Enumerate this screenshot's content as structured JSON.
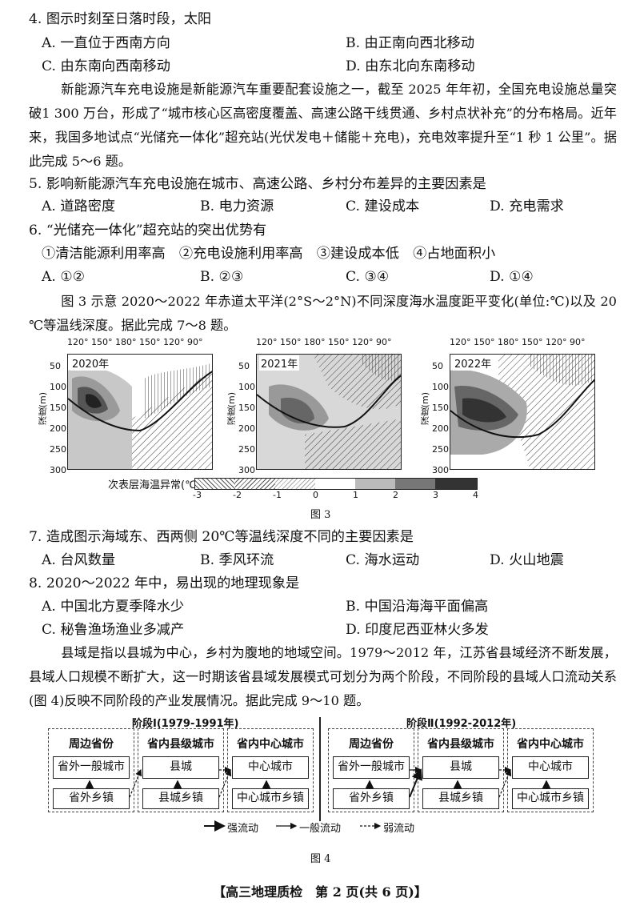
{
  "q4": {
    "stem": "4. 图示时刻至日落时段，太阳",
    "options": [
      "A. 一直位于西南方向",
      "B. 由正南向西北移动",
      "C. 由东南向西南移动",
      "D. 由东北向东南移动"
    ]
  },
  "passage1": "新能源汽车充电设施是新能源汽车重要配套设施之一，截至 2025 年年初，全国充电设施总量突破1 300 万台，形成了“城市核心区高密度覆盖、高速公路干线贯通、乡村点状补充”的分布格局。近年来，我国多地试点“光储充一体化”超充站(光伏发电＋储能＋充电)，充电效率提升至“1 秒 1 公里”。据此完成 5～6 题。",
  "q5": {
    "stem": "5. 影响新能源汽车充电设施在城市、高速公路、乡村分布差异的主要因素是",
    "options": [
      "A. 道路密度",
      "B. 电力资源",
      "C. 建设成本",
      "D. 充电需求"
    ]
  },
  "q6": {
    "stem": "6. “光储充一体化”超充站的突出优势有",
    "items": "①清洁能源利用率高　②充电设施利用率高　③建设成本低　④占地面积小",
    "options": [
      "A. ①②",
      "B. ②③",
      "C. ③④",
      "D. ①④"
    ]
  },
  "passage2": "图 3 示意 2020～2022 年赤道太平洋(2°S～2°N)不同深度海水温度距平变化(单位:℃)以及 20 ℃等温线深度。据此完成 7～8 题。",
  "figure3": {
    "panels": [
      "2020年",
      "2021年",
      "2022年"
    ],
    "x_ticks": [
      "120°",
      "150°",
      "180°",
      "150°",
      "120°",
      "90°"
    ],
    "y_ticks": [
      "50",
      "100",
      "150",
      "200",
      "250",
      "300"
    ],
    "ylabel": "深度(m)",
    "colorbar_label": "次表层海温异常(℃)",
    "colorbar_ticks": [
      "-3",
      "-2",
      "-1",
      "0",
      "1",
      "2",
      "3",
      "4"
    ],
    "caption": "图 3"
  },
  "q7": {
    "stem": "7. 造成图示海域东、西两侧 20℃等温线深度不同的主要因素是",
    "options": [
      "A. 台风数量",
      "B. 季风环流",
      "C. 海水运动",
      "D. 火山地震"
    ]
  },
  "q8": {
    "stem": "8. 2020～2022 年中，易出现的地理现象是",
    "options": [
      "A. 中国北方夏季降水少",
      "B. 中国沿海海平面偏高",
      "C. 秘鲁渔场渔业多减产",
      "D. 印度尼西亚林火多发"
    ]
  },
  "passage3": "县域是指以县城为中心，乡村为腹地的地域空间。1979～2012 年，江苏省县域经济不断发展，县域人口规模不断扩大，这一时期该省县域发展模式可划分为两个阶段，不同阶段的县域人口流动关系(图 4)反映不同阶段的产业发展情况。据此完成 9～10 题。",
  "figure4": {
    "phase1": "阶段Ⅰ(1979-1991年)",
    "phase2": "阶段Ⅱ(1992-2012年)",
    "headers": [
      "周边省份",
      "省内县级城市",
      "省内中心城市"
    ],
    "top_boxes": [
      "省外一般城市",
      "县城",
      "中心城市"
    ],
    "bottom_boxes": [
      "省外乡镇",
      "县城乡镇",
      "中心城市乡镇"
    ],
    "legend": [
      "强流动",
      "一般流动",
      "弱流动"
    ],
    "caption": "图 4"
  },
  "footer": "【高三地理质检　第 2 页(共 6 页)】"
}
